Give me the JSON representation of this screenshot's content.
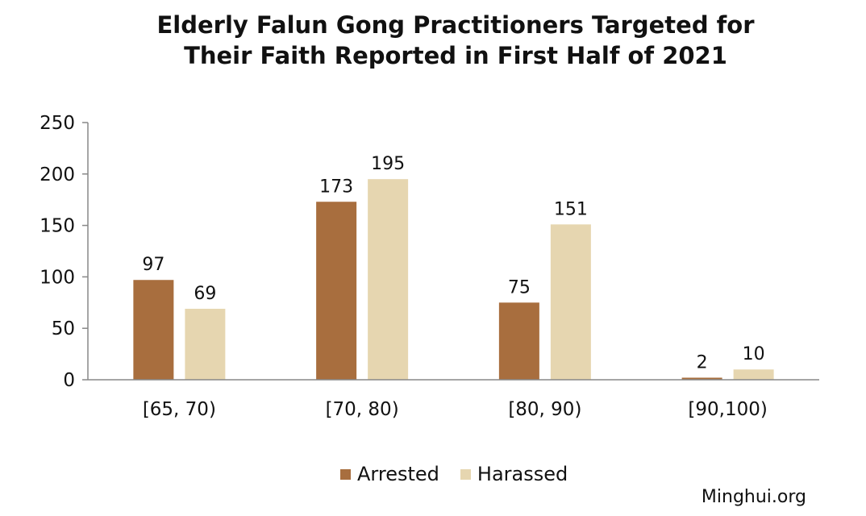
{
  "title_line1": "Elderly Falun Gong Practitioners Targeted for",
  "title_line2": "Their Faith Reported in First Half of 2021",
  "credit": "Minghui.org",
  "chart_data": {
    "type": "bar",
    "title": "Elderly Falun Gong Practitioners Targeted for Their Faith Reported in First Half of 2021",
    "categories": [
      "[65, 70)",
      "[70, 80)",
      "[80, 90)",
      "[90,100)"
    ],
    "series": [
      {
        "name": "Arrested",
        "values": [
          97,
          173,
          75,
          2
        ],
        "color": "#a86e3e"
      },
      {
        "name": "Harassed",
        "values": [
          69,
          195,
          151,
          10
        ],
        "color": "#e6d6b0"
      }
    ],
    "ylim": [
      0,
      250
    ],
    "yticks": [
      0,
      50,
      100,
      150,
      200,
      250
    ],
    "grid": false,
    "legend": "bottom",
    "data_labels": true
  }
}
